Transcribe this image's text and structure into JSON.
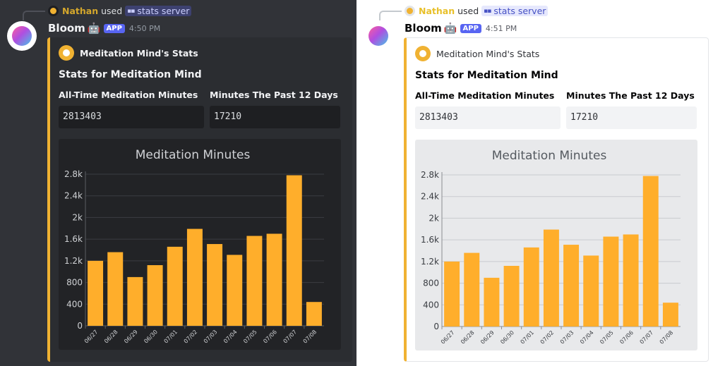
{
  "panes": [
    {
      "theme": "dark",
      "reply": {
        "username": "Nathan",
        "used": "used",
        "command": "stats server"
      },
      "message": {
        "author": "Bloom",
        "robot_emoji": "🤖",
        "badge": "APP",
        "timestamp": "4:50 PM"
      },
      "embed": {
        "author": "Meditation Mind's Stats",
        "title": "Stats for Meditation Mind",
        "fields": [
          {
            "name": "All-Time Meditation Minutes",
            "value": "2813403"
          },
          {
            "name": "Minutes The Past 12 Days",
            "value": "17210"
          }
        ]
      }
    },
    {
      "theme": "light",
      "reply": {
        "username": "Nathan",
        "used": "used",
        "command": "stats server"
      },
      "message": {
        "author": "Bloom",
        "robot_emoji": "🤖",
        "badge": "APP",
        "timestamp": "4:51 PM"
      },
      "embed": {
        "author": "Meditation Mind's Stats",
        "title": "Stats for Meditation Mind",
        "fields": [
          {
            "name": "All-Time Meditation Minutes",
            "value": "2813403"
          },
          {
            "name": "Minutes The Past 12 Days",
            "value": "17210"
          }
        ]
      }
    }
  ],
  "chart_data": {
    "type": "bar",
    "title": "Meditation Minutes",
    "categories": [
      "06/27",
      "06/28",
      "06/29",
      "06/30",
      "07/01",
      "07/02",
      "07/03",
      "07/04",
      "07/05",
      "07/06",
      "07/07",
      "07/08"
    ],
    "values": [
      1200,
      1360,
      900,
      1120,
      1460,
      1790,
      1510,
      1310,
      1660,
      1700,
      2780,
      440
    ],
    "yticks": [
      "0",
      "400",
      "800",
      "1.2k",
      "1.6k",
      "2k",
      "2.4k",
      "2.8k"
    ],
    "ylim": [
      0,
      2800
    ],
    "bar_color": "#ffae2b",
    "grid": true,
    "xlabel": "",
    "ylabel": ""
  },
  "colors": {
    "accent": "#f0b232",
    "badge": "#5865f2"
  },
  "icons": {
    "reply_avatar": "user-avatar-icon",
    "command": "command-icon",
    "author": "lightbulb-icon"
  }
}
